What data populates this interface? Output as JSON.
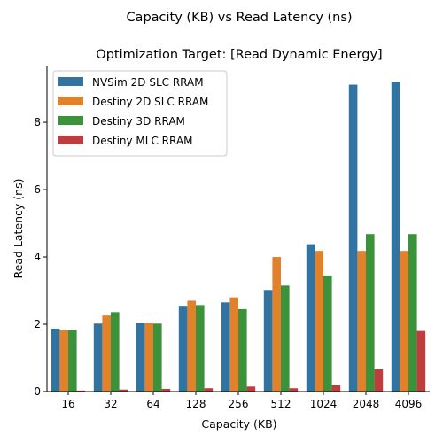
{
  "chart_data": {
    "type": "bar",
    "title": "Capacity (KB) vs Read Latency (ns)",
    "subtitle": "Optimization Target: [Read Dynamic Energy]",
    "xlabel": "Capacity (KB)",
    "ylabel": "Read Latency (ns)",
    "categories": [
      "16",
      "32",
      "64",
      "128",
      "256",
      "512",
      "1024",
      "2048",
      "4096"
    ],
    "ylim": [
      0,
      9.66
    ],
    "yticks": [
      0,
      2,
      4,
      6,
      8
    ],
    "grid": false,
    "legend_position": "top-left",
    "series": [
      {
        "name": "NVSim 2D SLC RRAM",
        "color": "#3274a1",
        "values": [
          1.87,
          2.02,
          2.05,
          2.55,
          2.65,
          3.02,
          4.38,
          9.12,
          9.2
        ]
      },
      {
        "name": "Destiny 2D SLC RRAM",
        "color": "#e1812c",
        "values": [
          1.82,
          2.26,
          2.05,
          2.7,
          2.8,
          4.0,
          4.18,
          4.18,
          4.18
        ]
      },
      {
        "name": "Destiny 3D RRAM",
        "color": "#3a923a",
        "values": [
          1.82,
          2.36,
          2.02,
          2.57,
          2.45,
          3.15,
          3.45,
          4.68,
          4.68
        ]
      },
      {
        "name": "Destiny MLC RRAM",
        "color": "#c03d3e",
        "values": [
          0.03,
          0.06,
          0.08,
          0.1,
          0.15,
          0.1,
          0.2,
          0.68,
          1.8
        ]
      }
    ]
  }
}
